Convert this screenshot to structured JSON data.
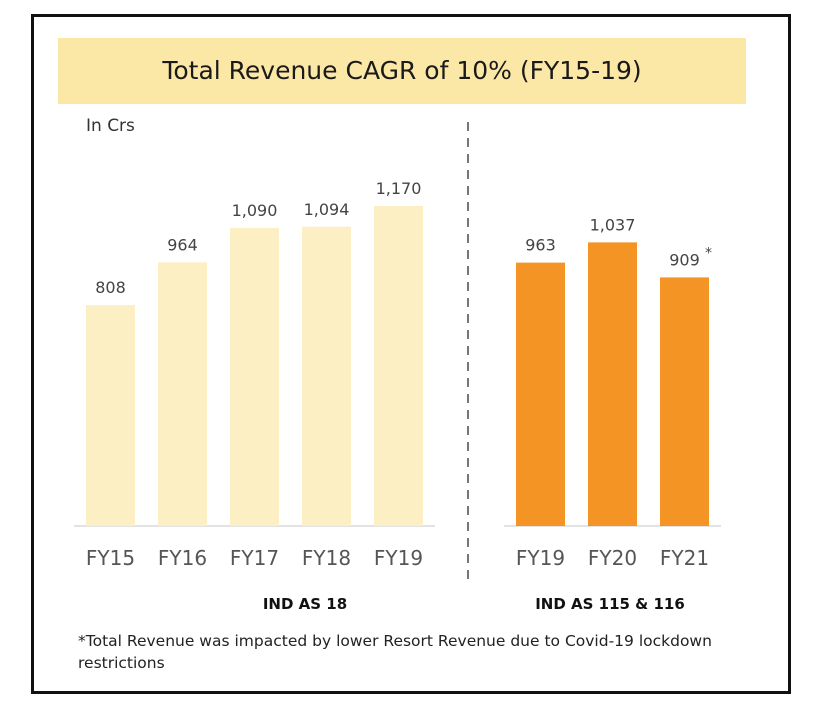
{
  "title": "Total Revenue CAGR of 10% (FY15-19)",
  "unit_label": "In Crs",
  "colors": {
    "light_bar": "#fdefc4",
    "dark_bar": "#f39425",
    "title_band": "#fbe7a6",
    "divider": "#777777"
  },
  "chart_data": {
    "type": "bar",
    "groups": [
      {
        "label": "IND AS 18",
        "categories": [
          "FY15",
          "FY16",
          "FY17",
          "FY18",
          "FY19"
        ],
        "values": [
          808,
          964,
          1090,
          1094,
          1170
        ],
        "value_labels": [
          "808",
          "964",
          "1,090",
          "1,094",
          "1,170"
        ],
        "color": "#fdefc4"
      },
      {
        "label": "IND AS 115 & 116",
        "categories": [
          "FY19",
          "FY20",
          "FY21"
        ],
        "values": [
          963,
          1037,
          909
        ],
        "value_labels": [
          "963",
          "1,037",
          "909"
        ],
        "annotations": [
          "",
          "",
          "*"
        ],
        "color": "#f39425"
      }
    ],
    "ylim": [
      0,
      1170
    ]
  },
  "footnote": "*Total Revenue was impacted by lower Resort Revenue due to Covid-19 lockdown restrictions"
}
